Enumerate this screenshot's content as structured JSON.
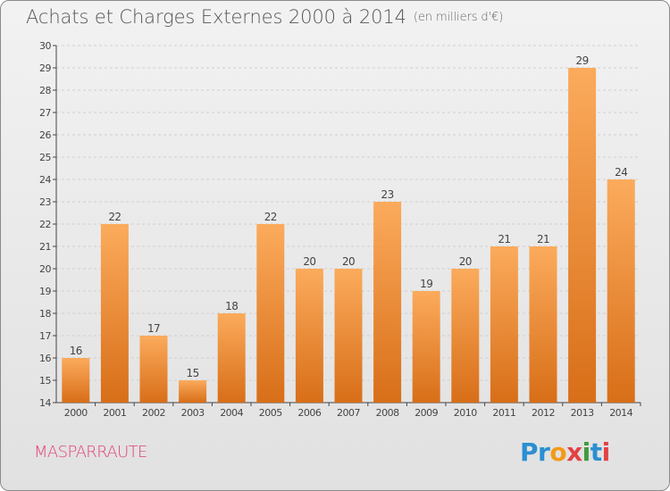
{
  "header": {
    "title": "Achats et Charges Externes 2000 à 2014",
    "unit": "(en milliers d'€)"
  },
  "footer": {
    "commune": "MASPARRAUTE",
    "brand": "Proxiti"
  },
  "colors": {
    "bar_light": "#fbab5c",
    "bar_dark": "#d86e18",
    "axis": "#444444",
    "grid": "#cfcfcf",
    "label": "#444444",
    "commune": "#e33e76",
    "brand_letters": [
      "#2a8fd3",
      "#2a8fd3",
      "#f39a1a",
      "#e34245",
      "#3e9c3f",
      "#2a8fd3",
      "#e34245"
    ]
  },
  "chart_data": {
    "type": "bar",
    "title": "Achats et Charges Externes 2000 à 2014",
    "subtitle": "(en milliers d'€)",
    "categories": [
      "2000",
      "2001",
      "2002",
      "2003",
      "2004",
      "2005",
      "2006",
      "2007",
      "2008",
      "2009",
      "2010",
      "2011",
      "2012",
      "2013",
      "2014"
    ],
    "values": [
      16,
      22,
      17,
      15,
      18,
      22,
      20,
      20,
      23,
      19,
      20,
      21,
      21,
      29,
      24
    ],
    "ylim": [
      14,
      30
    ],
    "yticks": [
      14,
      15,
      16,
      17,
      18,
      19,
      20,
      21,
      22,
      23,
      24,
      25,
      26,
      27,
      28,
      29,
      30
    ],
    "grid": "horizontal dashed",
    "legend": "none",
    "data_labels": true
  }
}
